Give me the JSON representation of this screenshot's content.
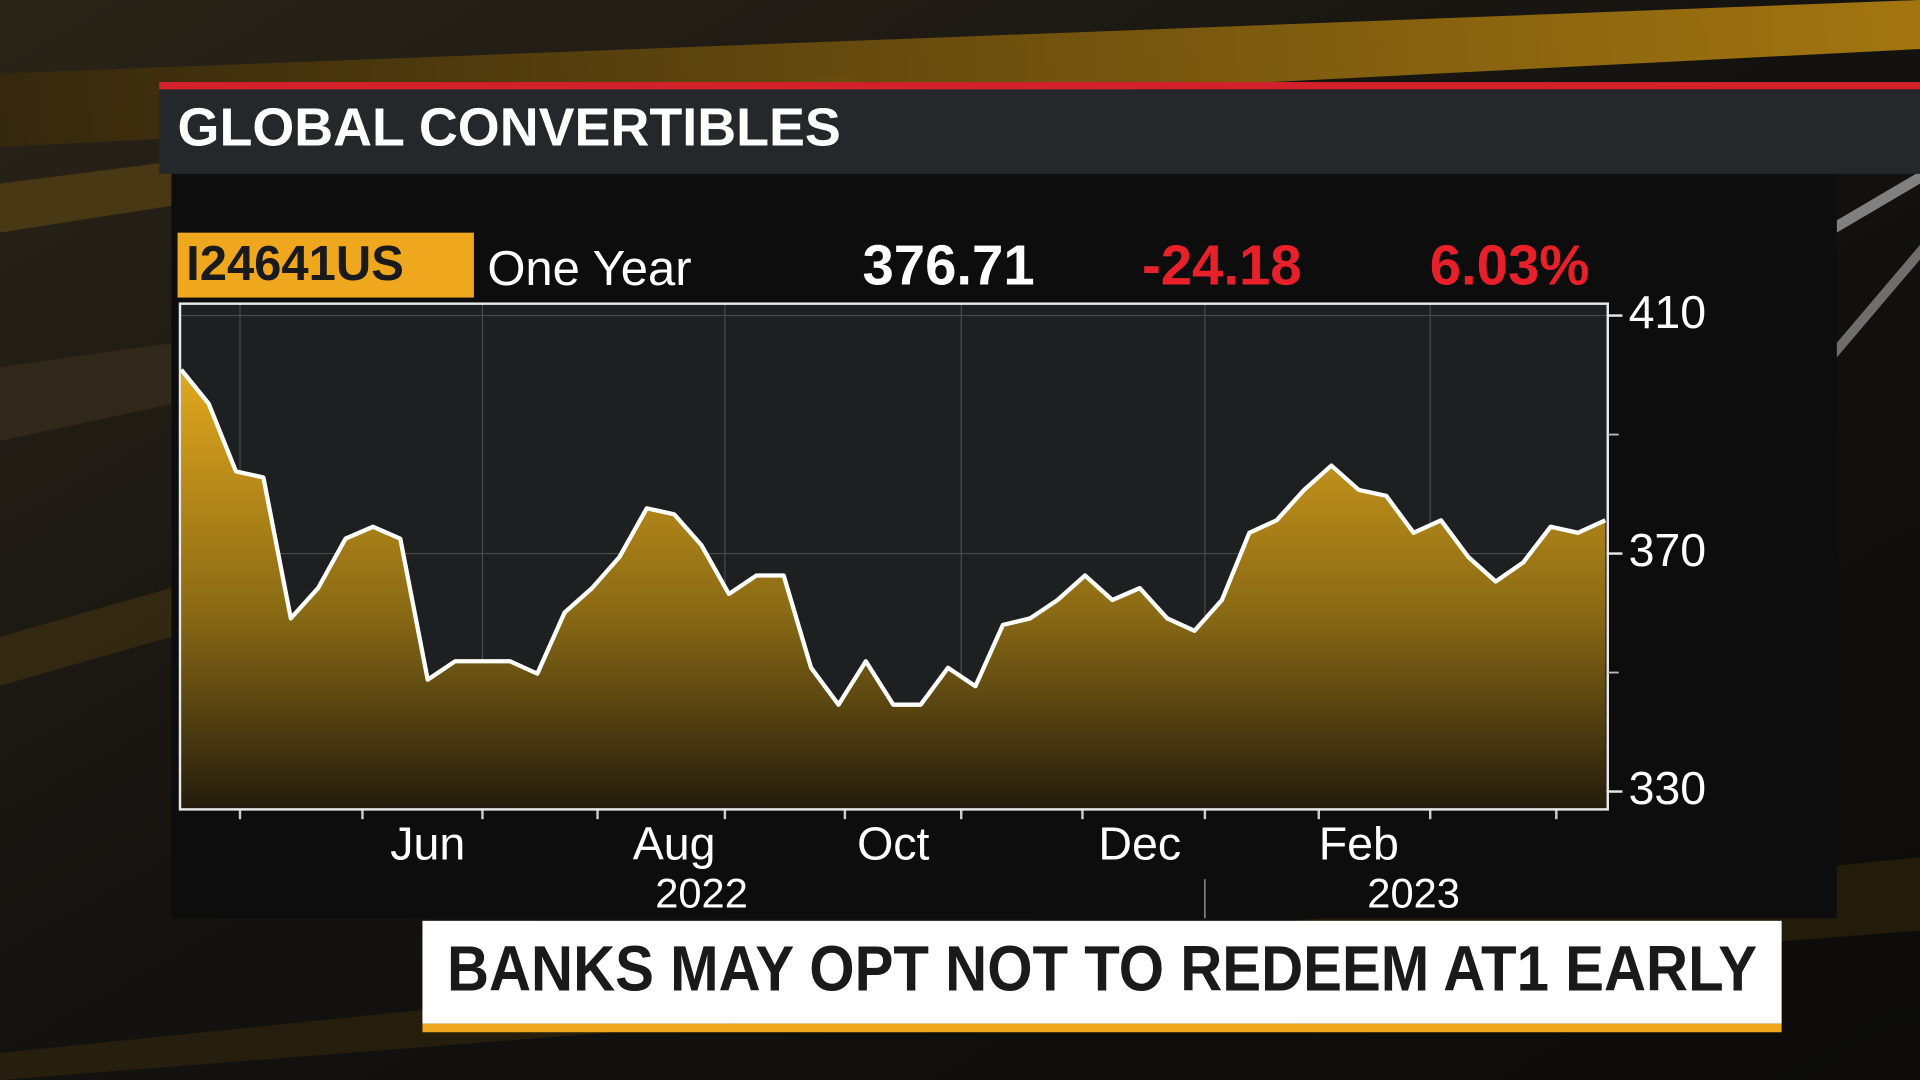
{
  "chart_data": {
    "type": "line",
    "title": "GLOBAL CONVERTIBLES",
    "ticker": "I24641US",
    "period": "One Year",
    "last_value": "376.71",
    "change": "-24.18",
    "change_percent": "6.03%",
    "headline": "BANKS MAY OPT NOT TO REDEEM AT1 EARLY",
    "categories": [
      null,
      null,
      null,
      null,
      null,
      null,
      null,
      null,
      null,
      "Jun",
      null,
      null,
      null,
      null,
      null,
      null,
      null,
      null,
      "Aug",
      null,
      null,
      null,
      null,
      null,
      null,
      null,
      "Oct",
      null,
      null,
      null,
      null,
      null,
      null,
      null,
      null,
      "Dec",
      null,
      null,
      null,
      null,
      null,
      null,
      null,
      "Feb",
      null,
      null,
      null,
      null,
      null,
      null,
      null,
      null,
      null
    ],
    "years": [
      null,
      null,
      null,
      null,
      null,
      null,
      null,
      null,
      null,
      null,
      null,
      null,
      null,
      null,
      null,
      null,
      null,
      null,
      null,
      "2022",
      null,
      null,
      null,
      null,
      null,
      null,
      null,
      null,
      null,
      null,
      null,
      null,
      null,
      null,
      null,
      null,
      null,
      null,
      null,
      null,
      null,
      null,
      null,
      null,
      null,
      "2023",
      null,
      null,
      null,
      null,
      null,
      null,
      null
    ],
    "series": [
      {
        "color": "#ffffff",
        "fill_color": "#e2a81e",
        "values": [
          400.9,
          395.2,
          383.8,
          382.8,
          359.1,
          364.2,
          372.5,
          374.5,
          372.5,
          348.8,
          351.9,
          351.9,
          351.9,
          349.8,
          360.1,
          364.2,
          369.4,
          377.6,
          376.6,
          371.4,
          363.2,
          366.3,
          366.3,
          350.8,
          344.6,
          351.9,
          344.6,
          344.6,
          350.8,
          347.7,
          358.0,
          359.1,
          362.2,
          366.3,
          362.2,
          364.2,
          359.1,
          357.0,
          362.2,
          373.5,
          375.6,
          380.7,
          384.8,
          380.7,
          379.7,
          373.5,
          375.6,
          369.4,
          365.3,
          368.5,
          374.5,
          373.5,
          375.6
        ]
      }
    ],
    "ylim": [
      327,
      412
    ],
    "yticks": [
      330,
      370,
      410
    ],
    "yminorticks": [
      350,
      390
    ],
    "grid": true
  }
}
